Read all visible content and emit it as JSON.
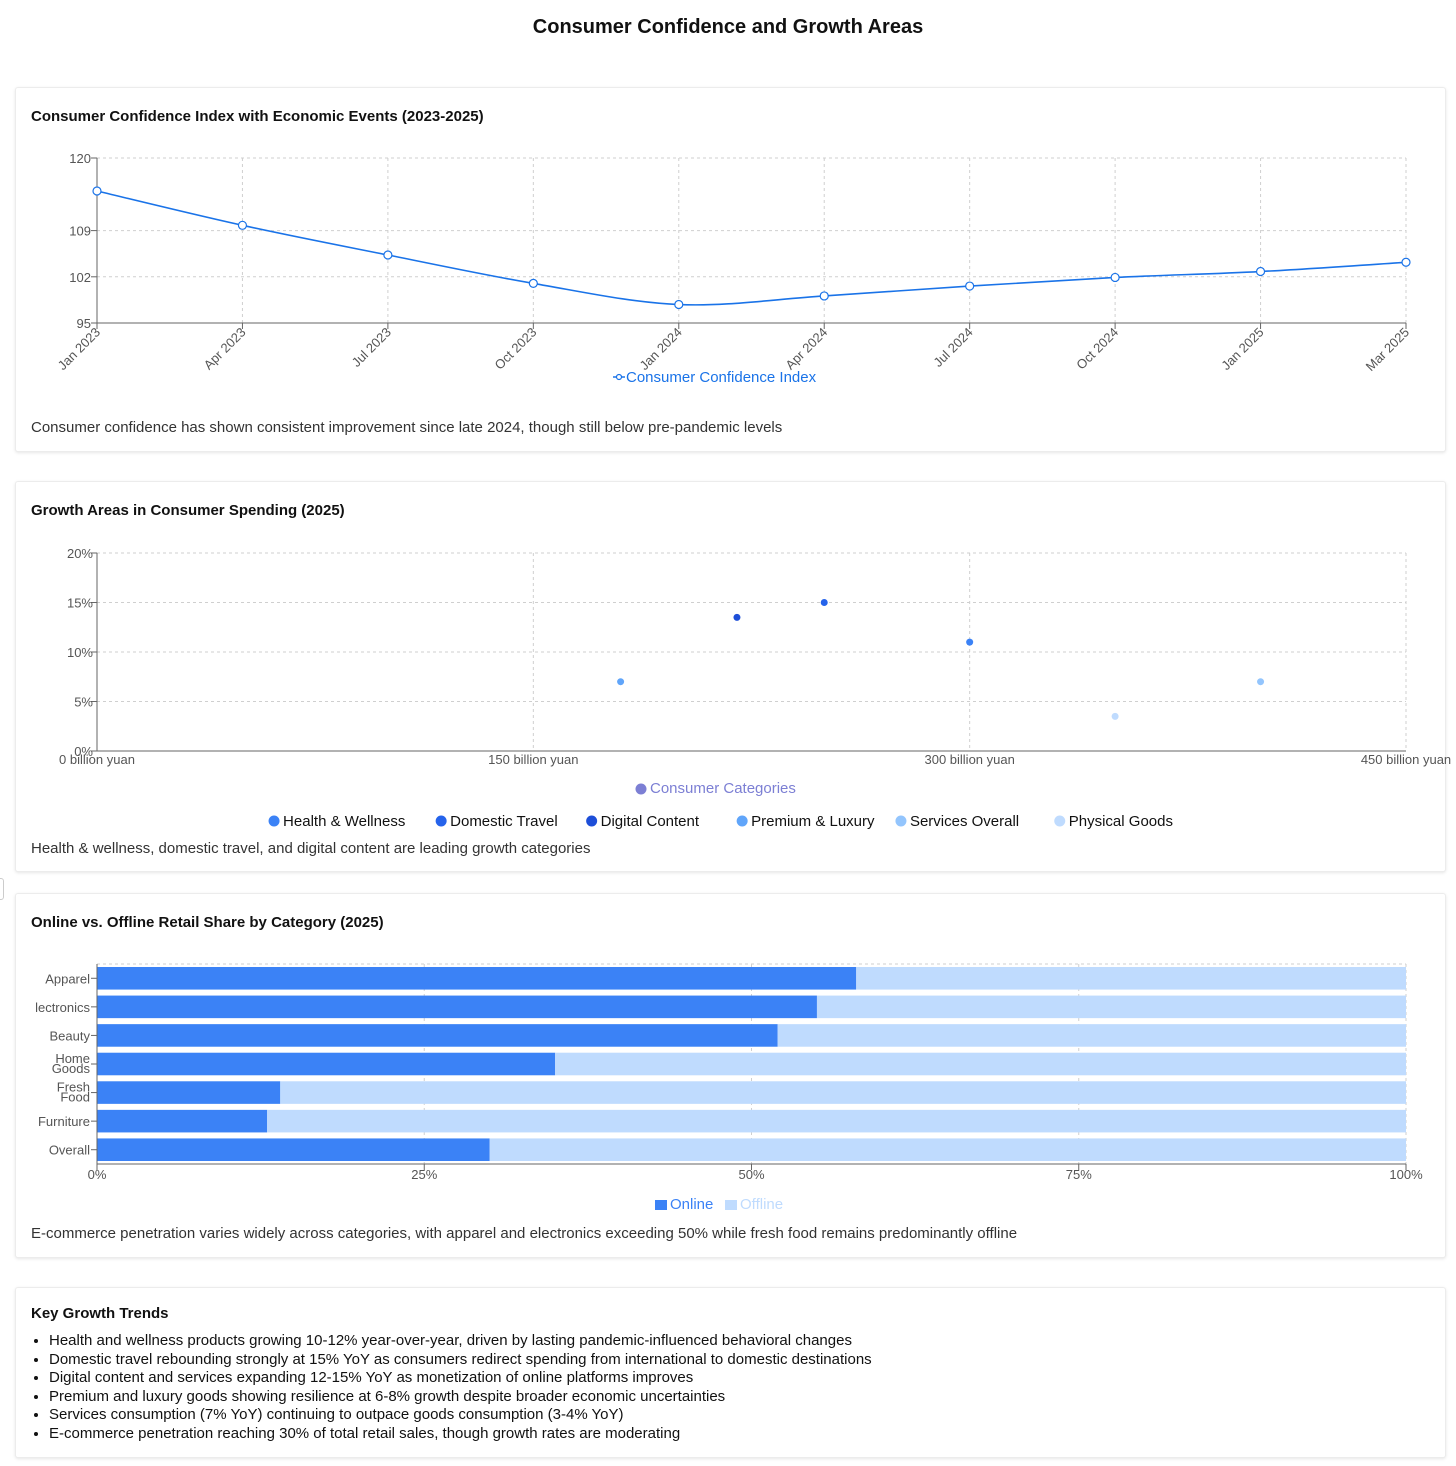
{
  "page": {
    "title": "Consumer Confidence and Growth Areas"
  },
  "colors": {
    "line": "#1a73e8",
    "online": "#3b82f6",
    "offline": "#bfdbfe",
    "legend_title": "#7c7fd4"
  },
  "cci": {
    "title": "Consumer Confidence Index with Economic Events (2023-2025)",
    "description": "Consumer confidence has shown consistent improvement since late 2024, though still below pre-pandemic levels",
    "legend": "Consumer Confidence Index"
  },
  "growth": {
    "title": "Growth Areas in Consumer Spending (2025)",
    "description": "Health & wellness, domestic travel, and digital content are leading growth categories",
    "legend_title": "Consumer Categories"
  },
  "retail": {
    "title": "Online vs. Offline Retail Share by Category (2025)",
    "description": "E-commerce penetration varies widely across categories, with apparel and electronics exceeding 50% while fresh food remains predominantly offline"
  },
  "trends": {
    "title": "Key Growth Trends",
    "items": [
      "Health and wellness products growing 10-12% year-over-year, driven by lasting pandemic-influenced behavioral changes",
      "Domestic travel rebounding strongly at 15% YoY as consumers redirect spending from international to domestic destinations",
      "Digital content and services expanding 12-15% YoY as monetization of online platforms improves",
      "Premium and luxury goods showing resilience at 6-8% growth despite broader economic uncertainties",
      "Services consumption (7% YoY) continuing to outpace goods consumption (3-4% YoY)",
      "E-commerce penetration reaching 30% of total retail sales, though growth rates are moderating"
    ]
  },
  "chart_data": [
    {
      "id": "cci",
      "type": "line",
      "title": "Consumer Confidence Index with Economic Events (2023-2025)",
      "x": [
        "Jan 2023",
        "Apr 2023",
        "Jul 2023",
        "Oct 2023",
        "Jan 2024",
        "Apr 2024",
        "Jul 2024",
        "Oct 2024",
        "Jan 2025",
        "Mar 2025"
      ],
      "series": [
        {
          "name": "Consumer Confidence Index",
          "values": [
            115,
            109.8,
            105.3,
            101,
            97.8,
            99.1,
            100.6,
            101.9,
            102.8,
            104.2
          ]
        }
      ],
      "yticks": [
        95,
        102,
        109,
        120
      ],
      "ylim": [
        95,
        120
      ],
      "grid": true,
      "legend": "bottom-center"
    },
    {
      "id": "growth",
      "type": "scatter",
      "title": "Growth Areas in Consumer Spending (2025)",
      "xlabel": "Consumer Categories",
      "xlim": [
        0,
        450
      ],
      "xticks": [
        0,
        150,
        300,
        450
      ],
      "xtick_suffix": " billion yuan",
      "ylim": [
        0,
        20
      ],
      "yticks": [
        0,
        5,
        10,
        15,
        20
      ],
      "ytick_suffix": "%",
      "series": [
        {
          "name": "Health & Wellness",
          "x": 300,
          "y": 11,
          "color": "#3b82f6"
        },
        {
          "name": "Domestic Travel",
          "x": 250,
          "y": 15,
          "color": "#2563eb"
        },
        {
          "name": "Digital Content",
          "x": 220,
          "y": 13.5,
          "color": "#1d4ed8"
        },
        {
          "name": "Premium & Luxury",
          "x": 180,
          "y": 7,
          "color": "#60a5fa"
        },
        {
          "name": "Services Overall",
          "x": 400,
          "y": 7,
          "color": "#93c5fd"
        },
        {
          "name": "Physical Goods",
          "x": 350,
          "y": 3.5,
          "color": "#bfdbfe"
        }
      ],
      "grid": true,
      "legend": "bottom-center"
    },
    {
      "id": "retail",
      "type": "bar",
      "orientation": "horizontal",
      "stacked": true,
      "title": "Online vs. Offline Retail Share by Category (2025)",
      "categories": [
        "Apparel",
        "Electronics",
        "Beauty",
        "Home Goods",
        "Fresh Food",
        "Furniture",
        "Overall"
      ],
      "category_labels_shown": [
        "Apparel",
        "lectronics",
        "Beauty",
        "Home Goods",
        "Fresh Food",
        "Furniture",
        "Overall"
      ],
      "series": [
        {
          "name": "Online",
          "values": [
            58,
            55,
            52,
            35,
            14,
            13,
            30
          ]
        },
        {
          "name": "Offline",
          "values": [
            42,
            45,
            48,
            65,
            86,
            87,
            70
          ]
        }
      ],
      "xlim": [
        0,
        100
      ],
      "xticks": [
        0,
        25,
        50,
        75,
        100
      ],
      "xtick_suffix": "%",
      "grid": true,
      "legend": "bottom-center"
    }
  ]
}
